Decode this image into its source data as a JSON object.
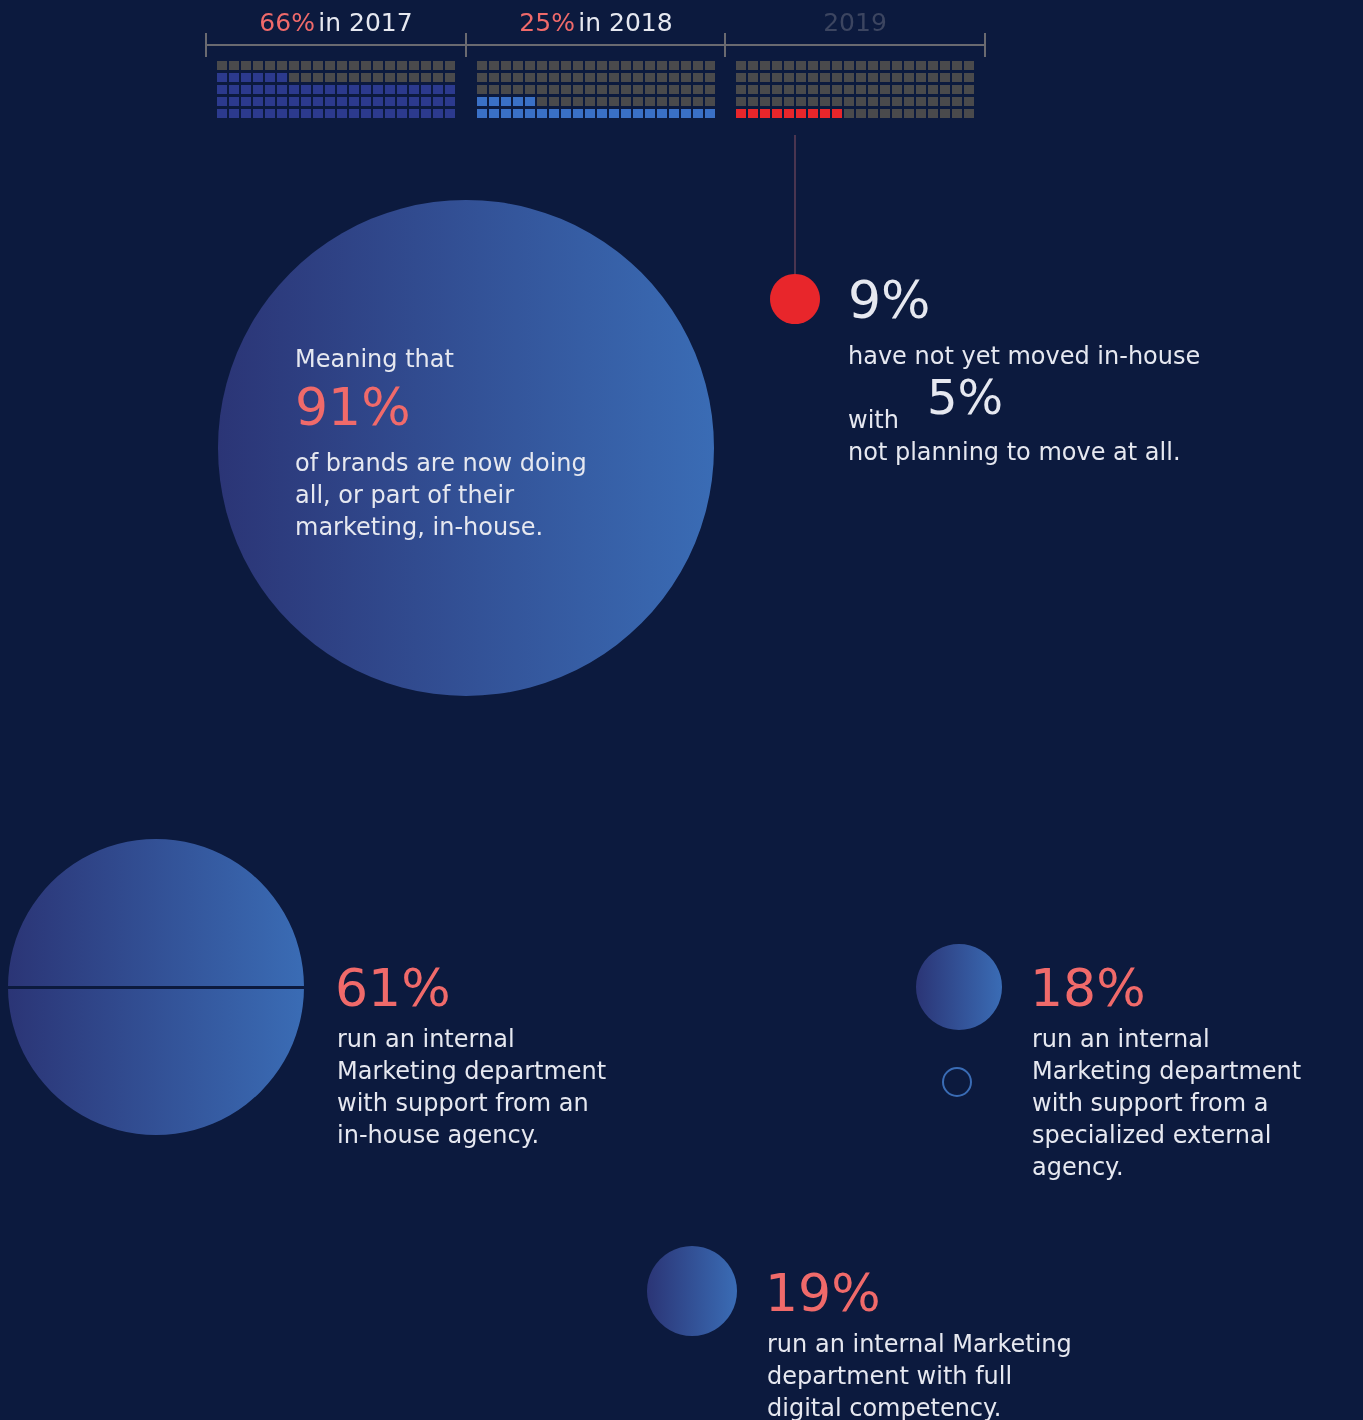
{
  "chart_data": [
    {
      "type": "other",
      "categories": [
        "in 2017",
        "in 2018",
        "2019"
      ],
      "values": [
        66,
        25,
        9
      ],
      "value_labels": [
        "66%",
        "25%",
        "9%"
      ],
      "colors": [
        "#2c3a8e",
        "#3a70c6",
        "#e8262b"
      ],
      "annotations": [
        "have not yet moved in-house",
        "with",
        "5%",
        "not planning to move at all."
      ]
    },
    {
      "type": "other",
      "values": [
        91,
        61,
        18,
        19
      ],
      "value_labels": [
        "91%",
        "61%",
        "18%",
        "19%"
      ],
      "colors": [
        "#3a6cb5",
        "#3a6cb5",
        "#3a6cb5",
        "#3a6cb5"
      ],
      "annotations": [
        "Meaning that",
        "of brands are now doing\nall, or part of their\nmarketing, in-house.",
        "run an internal\nMarketing department\nwith support from an\nin-house agency.",
        "run an internal\nMarketing department\nwith support from a\nspecialized external\nagency.",
        "run an internal Marketing\ndepartment with full\ndigital competency."
      ]
    }
  ]
}
